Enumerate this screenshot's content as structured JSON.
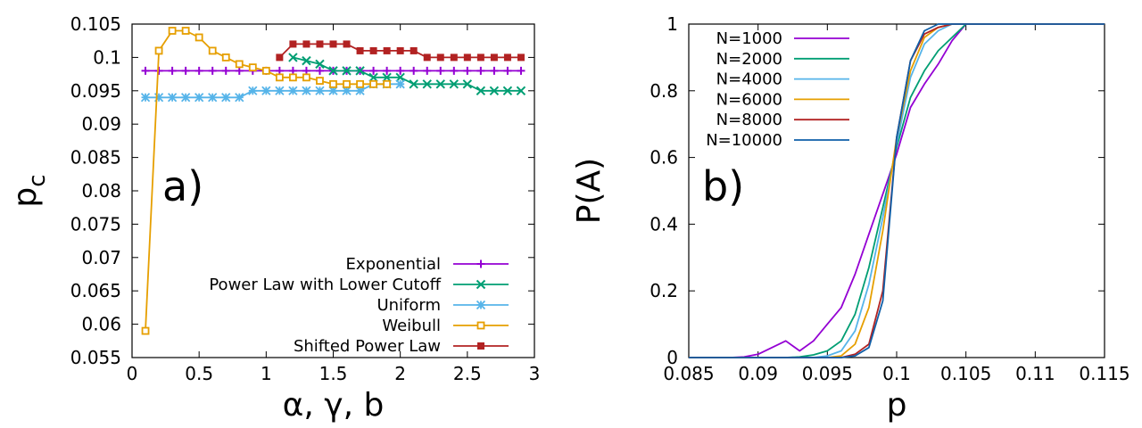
{
  "chart_data": [
    {
      "type": "line",
      "panel_label": "a)",
      "xlabel": "α, γ, b",
      "ylabel": "p",
      "ylabel_sub": "c",
      "xlim": [
        0,
        3
      ],
      "ylim": [
        0.055,
        0.105
      ],
      "xticks": [
        0,
        0.5,
        1,
        1.5,
        2,
        2.5,
        3
      ],
      "xtick_labels": [
        "0",
        "0.5",
        "1",
        "1.5",
        "2",
        "2.5",
        "3"
      ],
      "yticks": [
        0.055,
        0.06,
        0.065,
        0.07,
        0.075,
        0.08,
        0.085,
        0.09,
        0.095,
        0.1,
        0.105
      ],
      "ytick_labels": [
        "0.055",
        "0.06",
        "0.065",
        "0.07",
        "0.075",
        "0.08",
        "0.085",
        "0.09",
        "0.095",
        "0.1",
        "0.105"
      ],
      "legend_position": "bottom-right",
      "series": [
        {
          "name": "Exponential",
          "color": "#9400d3",
          "marker": "plus",
          "x": [
            0.1,
            0.2,
            0.3,
            0.4,
            0.5,
            0.6,
            0.7,
            0.8,
            0.9,
            1.0,
            1.1,
            1.2,
            1.3,
            1.4,
            1.5,
            1.6,
            1.7,
            1.8,
            1.9,
            2.0,
            2.1,
            2.2,
            2.3,
            2.4,
            2.5,
            2.6,
            2.7,
            2.8,
            2.9
          ],
          "y": [
            0.098,
            0.098,
            0.098,
            0.098,
            0.098,
            0.098,
            0.098,
            0.098,
            0.098,
            0.098,
            0.098,
            0.098,
            0.098,
            0.098,
            0.098,
            0.098,
            0.098,
            0.098,
            0.098,
            0.098,
            0.098,
            0.098,
            0.098,
            0.098,
            0.098,
            0.098,
            0.098,
            0.098,
            0.098
          ]
        },
        {
          "name": "Power Law with Lower Cutoff",
          "color": "#009e73",
          "marker": "x",
          "x": [
            1.2,
            1.3,
            1.4,
            1.5,
            1.6,
            1.7,
            1.8,
            1.9,
            2.0,
            2.1,
            2.2,
            2.3,
            2.4,
            2.5,
            2.6,
            2.7,
            2.8,
            2.9
          ],
          "y": [
            0.1,
            0.0995,
            0.099,
            0.098,
            0.098,
            0.098,
            0.097,
            0.097,
            0.097,
            0.096,
            0.096,
            0.096,
            0.096,
            0.096,
            0.095,
            0.095,
            0.095,
            0.095
          ]
        },
        {
          "name": "Uniform",
          "color": "#56b4e9",
          "marker": "star",
          "x": [
            0.1,
            0.2,
            0.3,
            0.4,
            0.5,
            0.6,
            0.7,
            0.8,
            0.9,
            1.0,
            1.1,
            1.2,
            1.3,
            1.4,
            1.5,
            1.6,
            1.7,
            1.8,
            1.9,
            2.0
          ],
          "y": [
            0.094,
            0.094,
            0.094,
            0.094,
            0.094,
            0.094,
            0.094,
            0.094,
            0.095,
            0.095,
            0.095,
            0.095,
            0.095,
            0.095,
            0.095,
            0.095,
            0.095,
            0.096,
            0.096,
            0.096
          ]
        },
        {
          "name": "Weibull",
          "color": "#e69f00",
          "marker": "square-open",
          "x": [
            0.1,
            0.2,
            0.3,
            0.4,
            0.5,
            0.6,
            0.7,
            0.8,
            0.9,
            1.0,
            1.1,
            1.2,
            1.3,
            1.4,
            1.5,
            1.6,
            1.7,
            1.8,
            1.9
          ],
          "y": [
            0.059,
            0.101,
            0.104,
            0.104,
            0.103,
            0.101,
            0.1,
            0.099,
            0.0985,
            0.098,
            0.097,
            0.097,
            0.097,
            0.0965,
            0.096,
            0.096,
            0.096,
            0.096,
            0.096
          ]
        },
        {
          "name": "Shifted Power Law",
          "color": "#b22222",
          "marker": "square-filled",
          "x": [
            1.1,
            1.2,
            1.3,
            1.4,
            1.5,
            1.6,
            1.7,
            1.8,
            1.9,
            2.0,
            2.1,
            2.2,
            2.3,
            2.4,
            2.5,
            2.6,
            2.7,
            2.8,
            2.9
          ],
          "y": [
            0.1,
            0.102,
            0.102,
            0.102,
            0.102,
            0.102,
            0.101,
            0.101,
            0.101,
            0.101,
            0.101,
            0.1,
            0.1,
            0.1,
            0.1,
            0.1,
            0.1,
            0.1,
            0.1
          ]
        }
      ]
    },
    {
      "type": "line",
      "panel_label": "b)",
      "xlabel": "p",
      "ylabel": "P(A)",
      "xlim": [
        0.085,
        0.115
      ],
      "ylim": [
        0,
        1
      ],
      "xticks": [
        0.085,
        0.09,
        0.095,
        0.1,
        0.105,
        0.11,
        0.115
      ],
      "xtick_labels": [
        "0.085",
        "0.09",
        "0.095",
        "0.1",
        "0.105",
        "0.11",
        "0.115"
      ],
      "yticks": [
        0,
        0.2,
        0.4,
        0.6,
        0.8,
        1
      ],
      "ytick_labels": [
        "0",
        "0.2",
        "0.4",
        "0.6",
        "0.8",
        "1"
      ],
      "legend_position": "top-left",
      "series": [
        {
          "name": "N=1000",
          "color": "#9400d3",
          "x": [
            0.085,
            0.086,
            0.087,
            0.088,
            0.089,
            0.09,
            0.091,
            0.092,
            0.093,
            0.094,
            0.095,
            0.096,
            0.097,
            0.098,
            0.099,
            0.1,
            0.101,
            0.102,
            0.103,
            0.104,
            0.105,
            0.106,
            0.115
          ],
          "y": [
            0,
            0,
            0,
            0,
            0.002,
            0.01,
            0.03,
            0.05,
            0.02,
            0.05,
            0.1,
            0.15,
            0.25,
            0.37,
            0.49,
            0.61,
            0.75,
            0.82,
            0.88,
            0.95,
            1.0,
            1.0,
            1.0
          ]
        },
        {
          "name": "N=2000",
          "color": "#009e73",
          "x": [
            0.085,
            0.092,
            0.093,
            0.094,
            0.095,
            0.096,
            0.097,
            0.098,
            0.099,
            0.1,
            0.101,
            0.102,
            0.103,
            0.104,
            0.105,
            0.106,
            0.115
          ],
          "y": [
            0,
            0,
            0.002,
            0.008,
            0.02,
            0.05,
            0.13,
            0.27,
            0.45,
            0.63,
            0.78,
            0.86,
            0.92,
            0.96,
            1.0,
            1.0,
            1.0
          ]
        },
        {
          "name": "N=4000",
          "color": "#56b4e9",
          "x": [
            0.085,
            0.094,
            0.095,
            0.096,
            0.097,
            0.098,
            0.099,
            0.1,
            0.101,
            0.102,
            0.103,
            0.104,
            0.105,
            0.115
          ],
          "y": [
            0,
            0,
            0.005,
            0.02,
            0.08,
            0.22,
            0.42,
            0.64,
            0.84,
            0.94,
            0.98,
            1.0,
            1.0,
            1.0
          ]
        },
        {
          "name": "N=6000",
          "color": "#e69f00",
          "x": [
            0.085,
            0.095,
            0.096,
            0.097,
            0.098,
            0.099,
            0.1,
            0.101,
            0.102,
            0.103,
            0.104,
            0.115
          ],
          "y": [
            0,
            0,
            0.005,
            0.04,
            0.15,
            0.38,
            0.66,
            0.86,
            0.96,
            0.99,
            1.0,
            1.0
          ]
        },
        {
          "name": "N=8000",
          "color": "#b22222",
          "x": [
            0.085,
            0.096,
            0.097,
            0.098,
            0.099,
            0.1,
            0.101,
            0.102,
            0.103,
            0.104,
            0.115
          ],
          "y": [
            0,
            0,
            0.01,
            0.04,
            0.2,
            0.66,
            0.89,
            0.97,
            0.99,
            1.0,
            1.0
          ]
        },
        {
          "name": "N=10000",
          "color": "#0f5fa8",
          "x": [
            0.085,
            0.096,
            0.097,
            0.098,
            0.099,
            0.1,
            0.101,
            0.102,
            0.103,
            0.115
          ],
          "y": [
            0,
            0,
            0.005,
            0.03,
            0.17,
            0.66,
            0.89,
            0.98,
            1.0,
            1.0
          ]
        }
      ]
    }
  ]
}
